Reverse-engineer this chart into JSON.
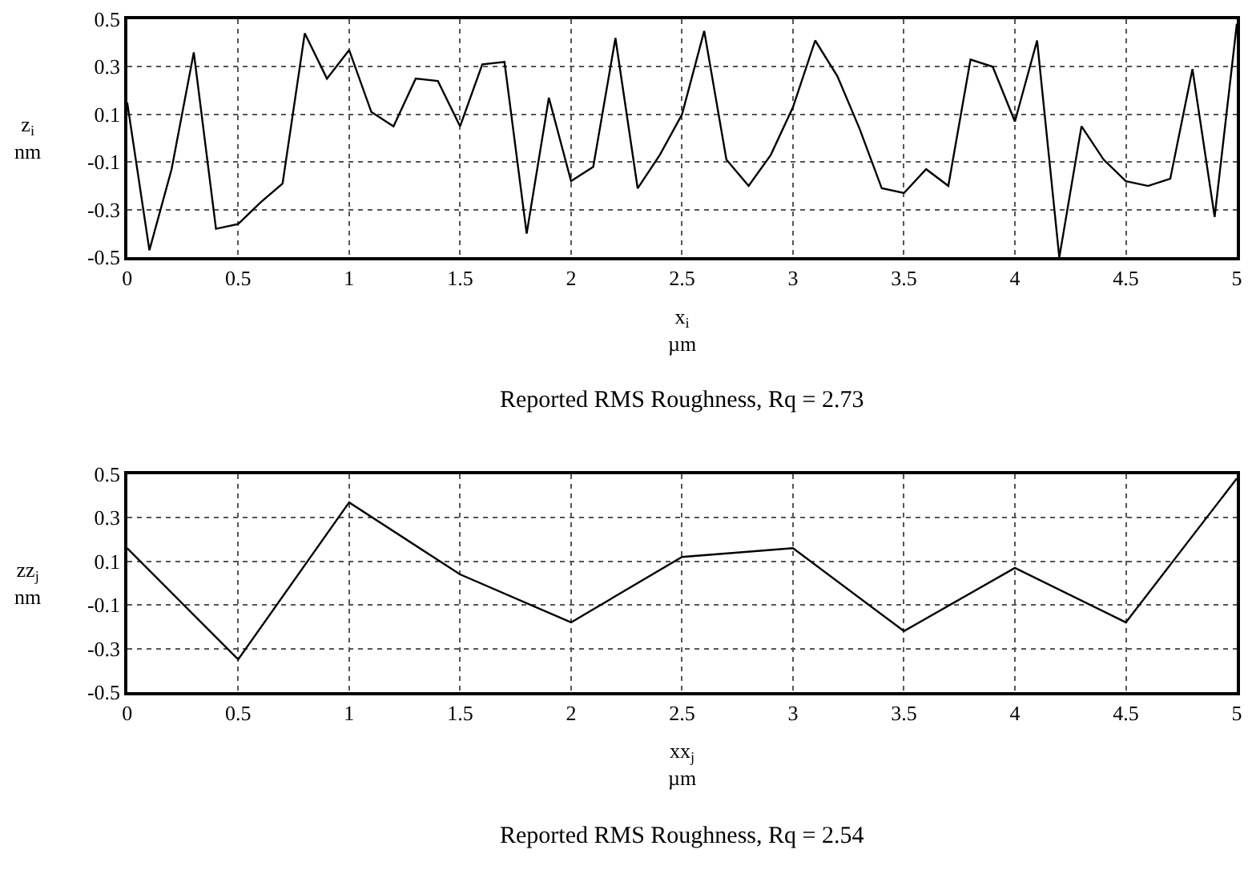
{
  "chart_data": [
    {
      "type": "line",
      "xlabel": "x$_{i}$\nµm",
      "ylabel": "z$_{i}$\nnm",
      "x": [
        0,
        0.1,
        0.2,
        0.3,
        0.4,
        0.5,
        0.6,
        0.7,
        0.8,
        0.9,
        1.0,
        1.1,
        1.2,
        1.3,
        1.4,
        1.5,
        1.6,
        1.7,
        1.8,
        1.9,
        2.0,
        2.1,
        2.2,
        2.3,
        2.4,
        2.5,
        2.6,
        2.7,
        2.8,
        2.9,
        3.0,
        3.1,
        3.2,
        3.3,
        3.4,
        3.5,
        3.6,
        3.7,
        3.8,
        3.9,
        4.0,
        4.1,
        4.2,
        4.3,
        4.4,
        4.5,
        4.6,
        4.7,
        4.8,
        4.9,
        5.0
      ],
      "series": [
        {
          "color": "#000000",
          "values": [
            0.15,
            -0.47,
            -0.13,
            0.36,
            -0.38,
            -0.36,
            -0.27,
            -0.19,
            0.44,
            0.25,
            0.37,
            0.11,
            0.05,
            0.25,
            0.24,
            0.05,
            0.31,
            0.32,
            -0.4,
            0.17,
            -0.18,
            -0.12,
            0.42,
            -0.21,
            -0.07,
            0.1,
            0.45,
            -0.09,
            -0.2,
            -0.07,
            0.13,
            0.41,
            0.26,
            0.04,
            -0.21,
            -0.23,
            -0.13,
            -0.2,
            0.33,
            0.3,
            0.07,
            0.41,
            -0.5,
            0.05,
            -0.09,
            -0.18,
            -0.2,
            -0.17,
            0.29,
            -0.33,
            0.48
          ]
        }
      ],
      "xlim": [
        0,
        5
      ],
      "xticks": [
        0,
        0.5,
        1,
        1.5,
        2,
        2.5,
        3,
        3.5,
        4,
        4.5,
        5
      ],
      "ylim": [
        -0.5,
        0.5
      ],
      "yticks": [
        0.5,
        0.3,
        0.1,
        -0.1,
        -0.3,
        -0.5
      ],
      "grid": true,
      "marker": "none",
      "line_style": "solid",
      "annotations": [
        "Reported RMS Roughness, Rq = 2.73"
      ]
    },
    {
      "type": "line",
      "xlabel": "xx$_{j}$\nµm",
      "ylabel": "zz$_{j}$\nnm",
      "x": [
        0,
        0.5,
        1,
        1.5,
        2,
        2.5,
        3,
        3.5,
        4,
        4.5,
        5
      ],
      "series": [
        {
          "color": "#000000",
          "values": [
            0.16,
            -0.35,
            0.37,
            0.04,
            -0.18,
            0.12,
            0.16,
            -0.22,
            0.07,
            -0.18,
            0.48
          ]
        }
      ],
      "xlim": [
        0,
        5
      ],
      "xticks": [
        0,
        0.5,
        1,
        1.5,
        2,
        2.5,
        3,
        3.5,
        4,
        4.5,
        5
      ],
      "ylim": [
        -0.5,
        0.5
      ],
      "yticks": [
        0.5,
        0.3,
        0.1,
        -0.1,
        -0.3,
        -0.5
      ],
      "grid": true,
      "marker": "none",
      "line_style": "solid",
      "annotations": [
        "Reported RMS Roughness, Rq = 2.54"
      ]
    }
  ]
}
